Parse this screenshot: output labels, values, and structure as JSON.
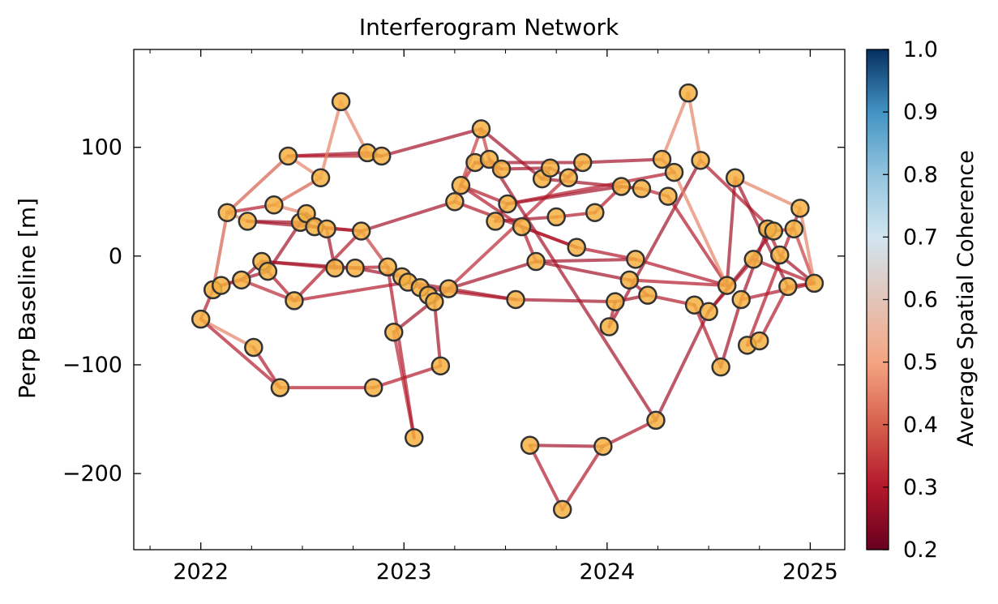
{
  "chart_data": {
    "type": "scatter",
    "title": "Interferogram Network",
    "xlabel": "",
    "ylabel": "Perp Baseline [m]",
    "xlim": [
      2021.67,
      2025.17
    ],
    "ylim": [
      -270,
      190
    ],
    "xticks": [
      2022,
      2023,
      2024,
      2025
    ],
    "xtick_labels": [
      "2022",
      "2023",
      "2024",
      "2025"
    ],
    "yticks": [
      100,
      0,
      -100,
      -200
    ],
    "ytick_labels": [
      "100",
      "0",
      "−100",
      "−200"
    ],
    "grid": false,
    "colorbar": {
      "label": "Average Spatial Coherence",
      "range": [
        0.2,
        1.0
      ],
      "ticks": [
        1.0,
        0.9,
        0.8,
        0.7,
        0.6,
        0.5,
        0.4,
        0.3,
        0.2
      ],
      "tick_labels": [
        "1.0",
        "0.9",
        "0.8",
        "0.7",
        "0.6",
        "0.5",
        "0.4",
        "0.3",
        "0.2"
      ],
      "colormap": "RdBu",
      "displayed_max": 0.7
    },
    "point_color": "#f5b041",
    "point_edge": "#333333",
    "points": [
      {
        "x": 2022.0,
        "y": -58
      },
      {
        "x": 2022.06,
        "y": -31
      },
      {
        "x": 2022.1,
        "y": -27
      },
      {
        "x": 2022.13,
        "y": 40
      },
      {
        "x": 2022.2,
        "y": -22
      },
      {
        "x": 2022.23,
        "y": 32
      },
      {
        "x": 2022.26,
        "y": -84
      },
      {
        "x": 2022.3,
        "y": -5
      },
      {
        "x": 2022.33,
        "y": -14
      },
      {
        "x": 2022.36,
        "y": 47
      },
      {
        "x": 2022.39,
        "y": -121
      },
      {
        "x": 2022.43,
        "y": 92
      },
      {
        "x": 2022.46,
        "y": -41
      },
      {
        "x": 2022.49,
        "y": 31
      },
      {
        "x": 2022.52,
        "y": 39
      },
      {
        "x": 2022.56,
        "y": 27
      },
      {
        "x": 2022.59,
        "y": 72
      },
      {
        "x": 2022.62,
        "y": 25
      },
      {
        "x": 2022.66,
        "y": -11
      },
      {
        "x": 2022.69,
        "y": 142
      },
      {
        "x": 2022.76,
        "y": -11
      },
      {
        "x": 2022.79,
        "y": 23
      },
      {
        "x": 2022.82,
        "y": 95
      },
      {
        "x": 2022.85,
        "y": -121
      },
      {
        "x": 2022.89,
        "y": 92
      },
      {
        "x": 2022.92,
        "y": -10
      },
      {
        "x": 2022.95,
        "y": -70
      },
      {
        "x": 2022.99,
        "y": -19
      },
      {
        "x": 2023.02,
        "y": -24
      },
      {
        "x": 2023.05,
        "y": -167
      },
      {
        "x": 2023.08,
        "y": -29
      },
      {
        "x": 2023.12,
        "y": -36
      },
      {
        "x": 2023.15,
        "y": -42
      },
      {
        "x": 2023.18,
        "y": -101
      },
      {
        "x": 2023.22,
        "y": -30
      },
      {
        "x": 2023.25,
        "y": 50
      },
      {
        "x": 2023.28,
        "y": 65
      },
      {
        "x": 2023.35,
        "y": 86
      },
      {
        "x": 2023.38,
        "y": 117
      },
      {
        "x": 2023.42,
        "y": 89
      },
      {
        "x": 2023.45,
        "y": 32
      },
      {
        "x": 2023.48,
        "y": 80
      },
      {
        "x": 2023.51,
        "y": 48
      },
      {
        "x": 2023.55,
        "y": -40
      },
      {
        "x": 2023.58,
        "y": 27
      },
      {
        "x": 2023.62,
        "y": -174
      },
      {
        "x": 2023.65,
        "y": -5
      },
      {
        "x": 2023.68,
        "y": 71
      },
      {
        "x": 2023.72,
        "y": 81
      },
      {
        "x": 2023.75,
        "y": 36
      },
      {
        "x": 2023.78,
        "y": -233
      },
      {
        "x": 2023.81,
        "y": 72
      },
      {
        "x": 2023.85,
        "y": 8
      },
      {
        "x": 2023.88,
        "y": 86
      },
      {
        "x": 2023.94,
        "y": 40
      },
      {
        "x": 2023.98,
        "y": -175
      },
      {
        "x": 2024.01,
        "y": -65
      },
      {
        "x": 2024.04,
        "y": -42
      },
      {
        "x": 2024.07,
        "y": 64
      },
      {
        "x": 2024.11,
        "y": -22
      },
      {
        "x": 2024.14,
        "y": -3
      },
      {
        "x": 2024.17,
        "y": 62
      },
      {
        "x": 2024.2,
        "y": -36
      },
      {
        "x": 2024.24,
        "y": -151
      },
      {
        "x": 2024.27,
        "y": 89
      },
      {
        "x": 2024.3,
        "y": 55
      },
      {
        "x": 2024.33,
        "y": 77
      },
      {
        "x": 2024.4,
        "y": 150
      },
      {
        "x": 2024.43,
        "y": -45
      },
      {
        "x": 2024.46,
        "y": 88
      },
      {
        "x": 2024.5,
        "y": -51
      },
      {
        "x": 2024.56,
        "y": -102
      },
      {
        "x": 2024.59,
        "y": -27
      },
      {
        "x": 2024.63,
        "y": 72
      },
      {
        "x": 2024.66,
        "y": -40
      },
      {
        "x": 2024.69,
        "y": -82
      },
      {
        "x": 2024.72,
        "y": -3
      },
      {
        "x": 2024.75,
        "y": -78
      },
      {
        "x": 2024.79,
        "y": 25
      },
      {
        "x": 2024.82,
        "y": 23
      },
      {
        "x": 2024.85,
        "y": 1
      },
      {
        "x": 2024.89,
        "y": -28
      },
      {
        "x": 2024.92,
        "y": 25
      },
      {
        "x": 2024.95,
        "y": 44
      },
      {
        "x": 2025.02,
        "y": -25
      }
    ],
    "edges": [
      [
        0,
        1,
        0.3
      ],
      [
        0,
        6,
        0.45
      ],
      [
        0,
        10,
        0.3
      ],
      [
        1,
        2,
        0.28
      ],
      [
        1,
        3,
        0.4
      ],
      [
        2,
        8,
        0.28
      ],
      [
        2,
        4,
        0.32
      ],
      [
        3,
        5,
        0.45
      ],
      [
        3,
        9,
        0.3
      ],
      [
        3,
        11,
        0.4
      ],
      [
        4,
        7,
        0.28
      ],
      [
        4,
        12,
        0.32
      ],
      [
        5,
        13,
        0.28
      ],
      [
        5,
        21,
        0.28
      ],
      [
        6,
        10,
        0.3
      ],
      [
        7,
        18,
        0.32
      ],
      [
        7,
        20,
        0.28
      ],
      [
        8,
        12,
        0.3
      ],
      [
        8,
        14,
        0.28
      ],
      [
        9,
        14,
        0.45
      ],
      [
        9,
        16,
        0.4
      ],
      [
        10,
        23,
        0.3
      ],
      [
        11,
        16,
        0.45
      ],
      [
        11,
        22,
        0.28
      ],
      [
        11,
        24,
        0.3
      ],
      [
        12,
        28,
        0.3
      ],
      [
        13,
        15,
        0.28
      ],
      [
        14,
        17,
        0.28
      ],
      [
        15,
        21,
        0.3
      ],
      [
        16,
        19,
        0.45
      ],
      [
        17,
        18,
        0.28
      ],
      [
        18,
        25,
        0.3
      ],
      [
        19,
        22,
        0.45
      ],
      [
        20,
        27,
        0.28
      ],
      [
        21,
        12,
        0.3
      ],
      [
        21,
        25,
        0.35
      ],
      [
        22,
        24,
        0.3
      ],
      [
        23,
        33,
        0.3
      ],
      [
        24,
        38,
        0.28
      ],
      [
        25,
        27,
        0.4
      ],
      [
        26,
        34,
        0.28
      ],
      [
        26,
        29,
        0.32
      ],
      [
        27,
        28,
        0.4
      ],
      [
        28,
        30,
        0.3
      ],
      [
        28,
        43,
        0.28
      ],
      [
        29,
        25,
        0.3
      ],
      [
        30,
        31,
        0.3
      ],
      [
        31,
        32,
        0.28
      ],
      [
        32,
        34,
        0.3
      ],
      [
        32,
        53,
        0.32
      ],
      [
        33,
        32,
        0.28
      ],
      [
        34,
        46,
        0.28
      ],
      [
        35,
        21,
        0.28
      ],
      [
        35,
        52,
        0.3
      ],
      [
        35,
        38,
        0.35
      ],
      [
        36,
        37,
        0.32
      ],
      [
        36,
        44,
        0.3
      ],
      [
        37,
        41,
        0.3
      ],
      [
        37,
        53,
        0.28
      ],
      [
        38,
        39,
        0.35
      ],
      [
        38,
        47,
        0.28
      ],
      [
        39,
        41,
        0.3
      ],
      [
        39,
        63,
        0.28
      ],
      [
        40,
        42,
        0.3
      ],
      [
        40,
        49,
        0.28
      ],
      [
        41,
        48,
        0.28
      ],
      [
        42,
        36,
        0.3
      ],
      [
        42,
        58,
        0.28
      ],
      [
        43,
        30,
        0.3
      ],
      [
        43,
        57,
        0.28
      ],
      [
        44,
        46,
        0.3
      ],
      [
        44,
        52,
        0.3
      ],
      [
        45,
        50,
        0.3
      ],
      [
        45,
        55,
        0.28
      ],
      [
        46,
        59,
        0.28
      ],
      [
        46,
        60,
        0.28
      ],
      [
        47,
        48,
        0.3
      ],
      [
        47,
        61,
        0.28
      ],
      [
        48,
        51,
        0.28
      ],
      [
        49,
        54,
        0.3
      ],
      [
        50,
        55,
        0.3
      ],
      [
        51,
        53,
        0.3
      ],
      [
        52,
        60,
        0.3
      ],
      [
        53,
        64,
        0.28
      ],
      [
        54,
        58,
        0.3
      ],
      [
        55,
        63,
        0.3
      ],
      [
        56,
        57,
        0.3
      ],
      [
        56,
        69,
        0.28
      ],
      [
        57,
        62,
        0.28
      ],
      [
        58,
        61,
        0.28
      ],
      [
        59,
        62,
        0.28
      ],
      [
        59,
        72,
        0.3
      ],
      [
        60,
        72,
        0.3
      ],
      [
        61,
        65,
        0.32
      ],
      [
        62,
        68,
        0.3
      ],
      [
        63,
        70,
        0.28
      ],
      [
        64,
        66,
        0.3
      ],
      [
        64,
        67,
        0.45
      ],
      [
        65,
        72,
        0.3
      ],
      [
        66,
        72,
        0.45
      ],
      [
        67,
        69,
        0.45
      ],
      [
        68,
        71,
        0.3
      ],
      [
        69,
        79,
        0.3
      ],
      [
        70,
        76,
        0.3
      ],
      [
        71,
        74,
        0.28
      ],
      [
        72,
        73,
        0.28
      ],
      [
        73,
        81,
        0.28
      ],
      [
        73,
        83,
        0.45
      ],
      [
        74,
        78,
        0.28
      ],
      [
        75,
        77,
        0.32
      ],
      [
        75,
        83,
        0.3
      ],
      [
        76,
        84,
        0.3
      ],
      [
        77,
        81,
        0.3
      ],
      [
        78,
        80,
        0.3
      ],
      [
        79,
        82,
        0.3
      ],
      [
        80,
        84,
        0.28
      ],
      [
        81,
        84,
        0.3
      ],
      [
        82,
        84,
        0.35
      ],
      [
        83,
        84,
        0.45
      ],
      [
        70,
        79,
        0.28
      ],
      [
        74,
        84,
        0.3
      ],
      [
        42,
        66,
        0.3
      ]
    ]
  }
}
